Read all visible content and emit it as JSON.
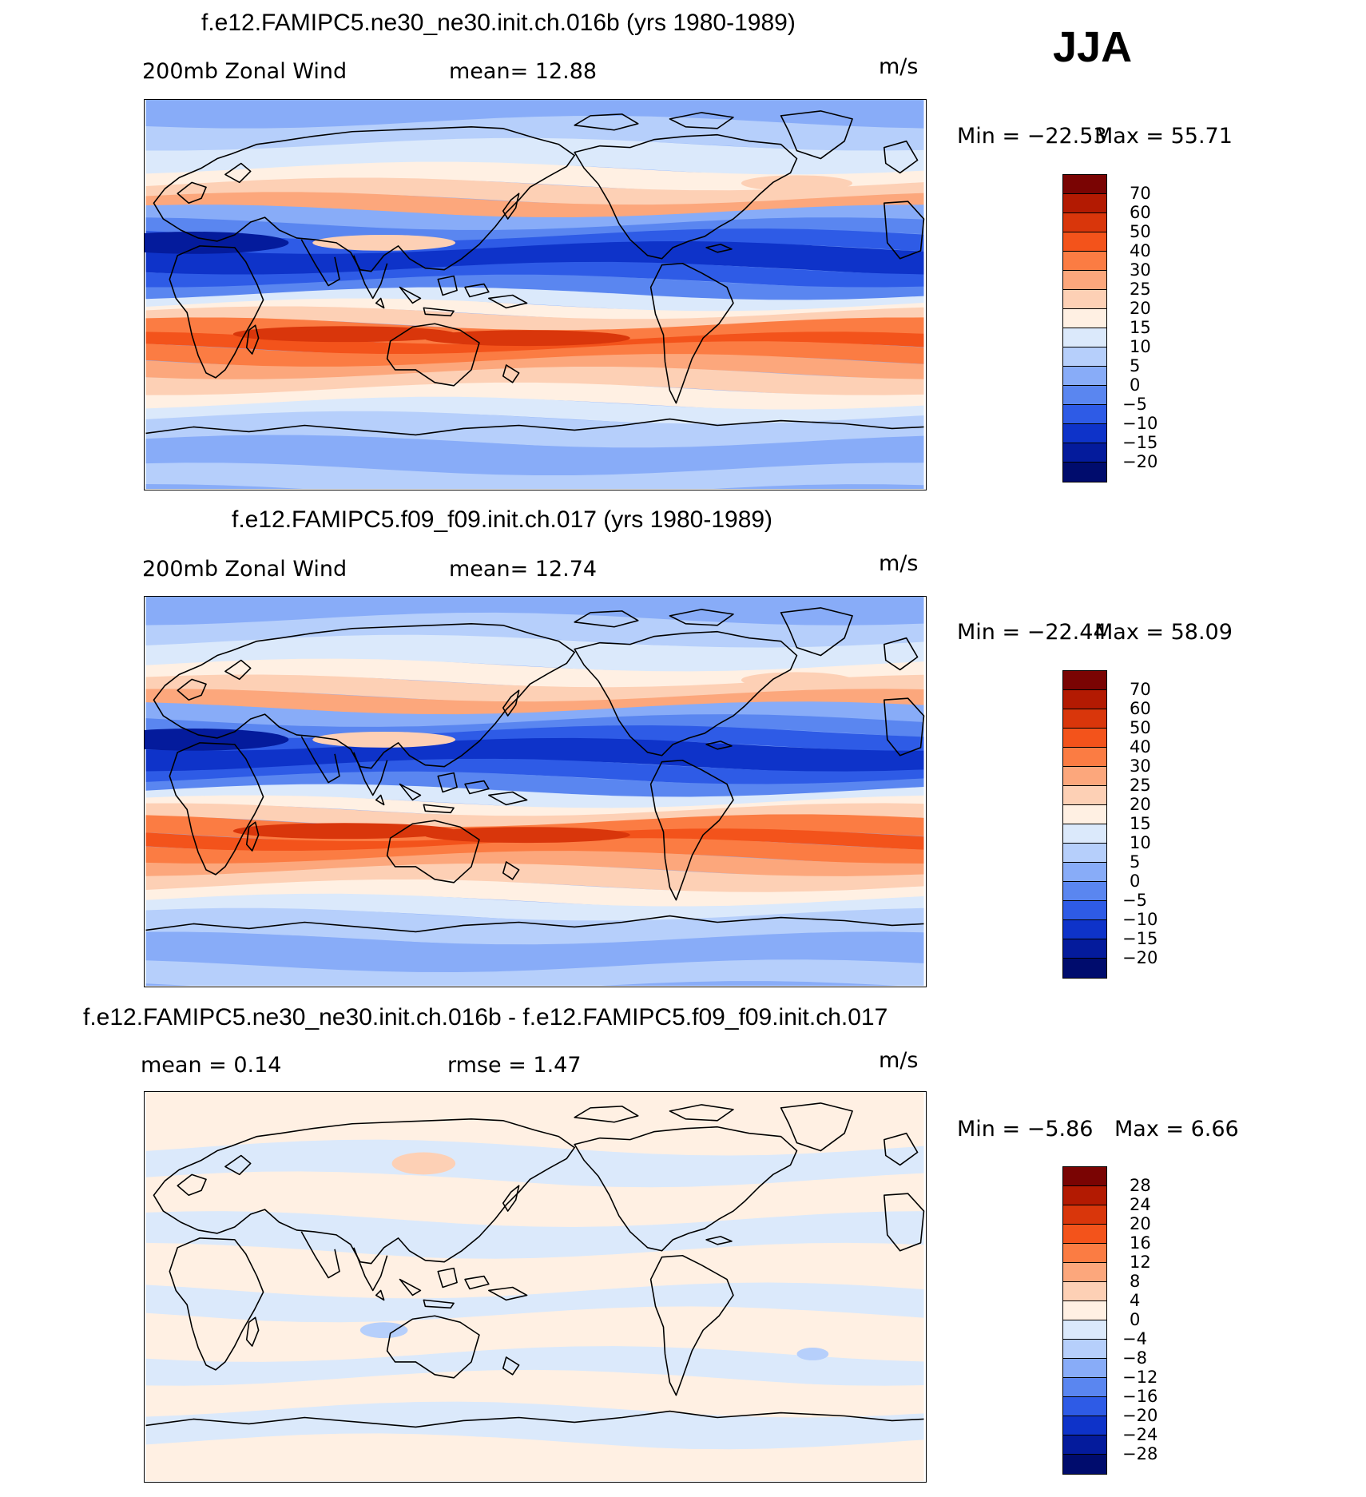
{
  "season": "JJA",
  "units": "m/s",
  "panels": [
    {
      "title": "f.e12.FAMIPC5.ne30_ne30.init.ch.016b (yrs 1980-1989)",
      "left_label": "200mb  Zonal  Wind",
      "center_label": "mean=   12.88",
      "min_label": "Min  =  −22.53",
      "max_label": "Max  =    55.71",
      "colorbar_ticks": [
        "70",
        "60",
        "50",
        "40",
        "30",
        "25",
        "20",
        "15",
        "10",
        "5",
        "0",
        "−5",
        "−10",
        "−15",
        "−20"
      ]
    },
    {
      "title": "f.e12.FAMIPC5.f09_f09.init.ch.017 (yrs 1980-1989)",
      "left_label": "200mb  Zonal  Wind",
      "center_label": "mean=   12.74",
      "min_label": "Min  =  −22.44",
      "max_label": "Max  =    58.09",
      "colorbar_ticks": [
        "70",
        "60",
        "50",
        "40",
        "30",
        "25",
        "20",
        "15",
        "10",
        "5",
        "0",
        "−5",
        "−10",
        "−15",
        "−20"
      ]
    },
    {
      "title": "f.e12.FAMIPC5.ne30_ne30.init.ch.016b - f.e12.FAMIPC5.f09_f09.init.ch.017",
      "left_label": "mean  =     0.14",
      "center_label": "rmse  =     1.47",
      "min_label": "Min  =    −5.86",
      "max_label": "Max  =      6.66",
      "colorbar_ticks": [
        "28",
        "24",
        "20",
        "16",
        "12",
        "8",
        "4",
        "0",
        "−4",
        "−8",
        "−12",
        "−16",
        "−20",
        "−24",
        "−28"
      ]
    }
  ],
  "colorbar_colors": [
    "#7a0403",
    "#b31a02",
    "#d9360b",
    "#f3531b",
    "#fb7c43",
    "#fca77c",
    "#fdd0b5",
    "#fff0e3",
    "#dbe9fb",
    "#b6cffb",
    "#88acf8",
    "#5a86f0",
    "#2e5be6",
    "#0e33c9",
    "#041b9c",
    "#000c6d"
  ],
  "icon_names": [
    "world-coastline-map-icon",
    "colorbar-icon"
  ]
}
